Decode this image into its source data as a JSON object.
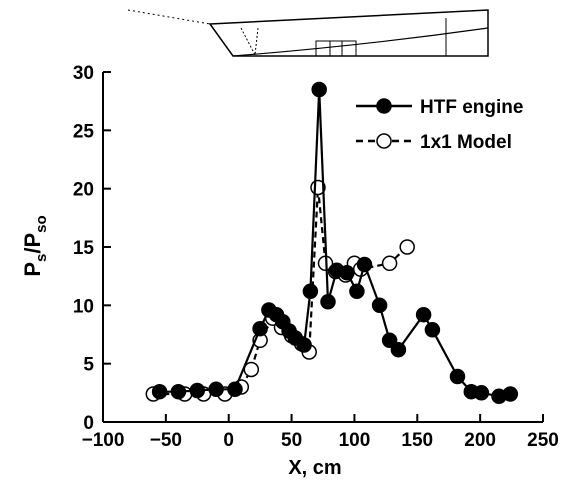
{
  "chart_data": {
    "type": "line",
    "xlabel": "X, cm",
    "ylabel": {
      "main": "P",
      "sub1": "s",
      "slash": "/P",
      "sub2": "so"
    },
    "xlim": [
      -100,
      250
    ],
    "ylim": [
      0,
      30
    ],
    "xticks": [
      "−100",
      "−50",
      "0",
      "50",
      "100",
      "150",
      "200",
      "250"
    ],
    "yticks": [
      "0",
      "5",
      "10",
      "15",
      "20",
      "25",
      "30"
    ],
    "grid": false,
    "legend_position": "top-right",
    "series": [
      {
        "name": "HTF engine",
        "marker": "filled-circle",
        "line": "solid",
        "color": "#000000",
        "points": [
          [
            -55,
            2.6
          ],
          [
            -40,
            2.6
          ],
          [
            -25,
            2.7
          ],
          [
            -10,
            2.8
          ],
          [
            5,
            2.8
          ],
          [
            25,
            8.0
          ],
          [
            32,
            9.6
          ],
          [
            38,
            9.2
          ],
          [
            43,
            8.6
          ],
          [
            48,
            7.8
          ],
          [
            53,
            7.2
          ],
          [
            60,
            6.6
          ],
          [
            65,
            11.2
          ],
          [
            72,
            28.5
          ],
          [
            79,
            10.3
          ],
          [
            86,
            13.0
          ],
          [
            94,
            12.8
          ],
          [
            102,
            11.2
          ],
          [
            108,
            13.5
          ],
          [
            120,
            10.0
          ],
          [
            128,
            7.0
          ],
          [
            135,
            6.2
          ],
          [
            155,
            9.2
          ],
          [
            162,
            7.9
          ],
          [
            182,
            3.9
          ],
          [
            193,
            2.6
          ],
          [
            201,
            2.5
          ],
          [
            215,
            2.2
          ],
          [
            224,
            2.4
          ]
        ]
      },
      {
        "name": "1x1 Model",
        "marker": "open-circle",
        "line": "dashed",
        "color": "#000000",
        "points": [
          [
            -60,
            2.4
          ],
          [
            -35,
            2.4
          ],
          [
            -20,
            2.4
          ],
          [
            -3,
            2.4
          ],
          [
            10,
            3.0
          ],
          [
            18,
            4.5
          ],
          [
            25,
            7.0
          ],
          [
            35,
            8.9
          ],
          [
            42,
            8.1
          ],
          [
            50,
            7.4
          ],
          [
            58,
            6.7
          ],
          [
            64,
            6.0
          ],
          [
            71,
            20.1
          ],
          [
            77,
            13.6
          ],
          [
            85,
            12.9
          ],
          [
            93,
            12.6
          ],
          [
            100,
            13.6
          ],
          [
            105,
            13.1
          ],
          [
            128,
            13.6
          ],
          [
            142,
            15.0
          ]
        ]
      }
    ]
  }
}
